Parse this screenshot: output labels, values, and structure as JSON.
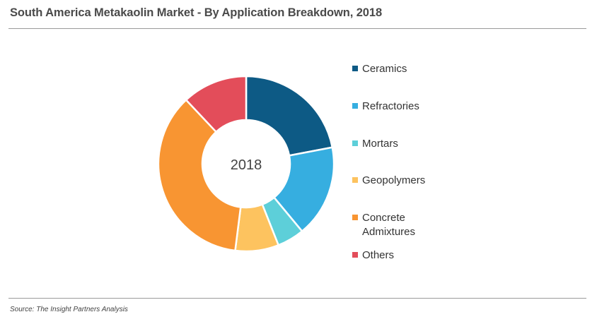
{
  "title": "South America Metakaolin Market - By Application Breakdown, 2018",
  "source": "Source: The Insight Partners Analysis",
  "chart_data": {
    "type": "pie",
    "center_label": "2018",
    "legend_position": "right",
    "categories": [
      "Ceramics",
      "Refractories",
      "Mortars",
      "Geopolymers",
      "Concrete\nAdmixtures",
      "Others"
    ],
    "values": [
      22,
      17,
      5,
      8,
      36,
      12
    ],
    "colors": [
      "#0d5a85",
      "#36aee0",
      "#5dcfd9",
      "#fdc35f",
      "#f89532",
      "#e34d5a"
    ]
  }
}
